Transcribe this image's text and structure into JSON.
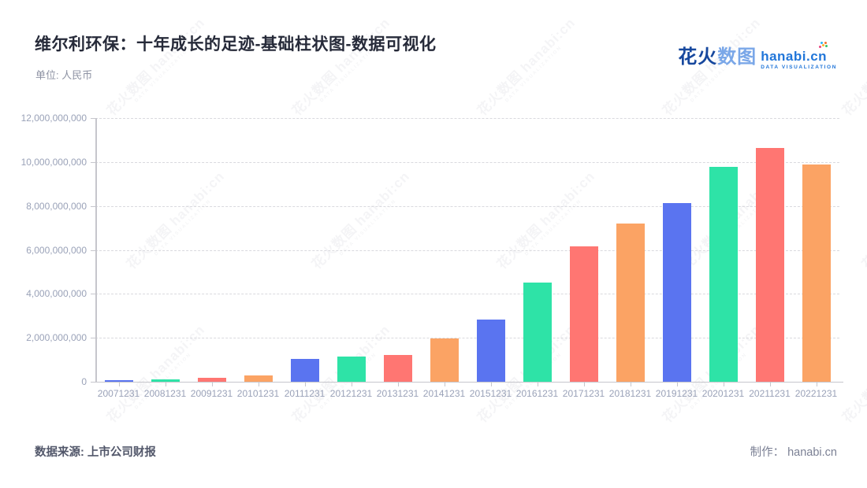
{
  "header": {
    "title": "维尔利环保：十年成长的足迹-基础柱状图-数据可视化",
    "unit_label": "单位: 人民币"
  },
  "logo": {
    "cn_bold": "花火",
    "cn_light": "数图",
    "domain": "hanabi.cn",
    "tagline": "DATA VISUALIZATION",
    "color_dark": "#17489E",
    "color_light": "#7AA7E8",
    "color_domain": "#2176D9"
  },
  "watermark": {
    "line1": "花火数图 hanabi:cn",
    "line2": "DATA VISUALIZATION"
  },
  "chart_data": {
    "type": "bar",
    "title": "维尔利环保：十年成长的足迹",
    "unit": "人民币",
    "categories": [
      "20071231",
      "20081231",
      "20091231",
      "20101231",
      "20111231",
      "20121231",
      "20131231",
      "20141231",
      "20151231",
      "20161231",
      "20171231",
      "20181231",
      "20191231",
      "20201231",
      "20211231",
      "20221231"
    ],
    "values": [
      70000000,
      100000000,
      170000000,
      280000000,
      1050000000,
      1160000000,
      1220000000,
      1970000000,
      2820000000,
      4500000000,
      6150000000,
      7200000000,
      8130000000,
      9780000000,
      10630000000,
      9880000000
    ],
    "bar_colors": [
      "#5A74F0",
      "#2EE3A7",
      "#FF7672",
      "#FBA364"
    ],
    "xlabel": "",
    "ylabel": "",
    "ylim": [
      0,
      12000000000
    ],
    "y_tick_step": 2000000000,
    "grid": "horizontal-dashed",
    "legend": "none"
  },
  "footer": {
    "source": "数据来源: 上市公司财报",
    "credit": "制作： hanabi.cn"
  }
}
